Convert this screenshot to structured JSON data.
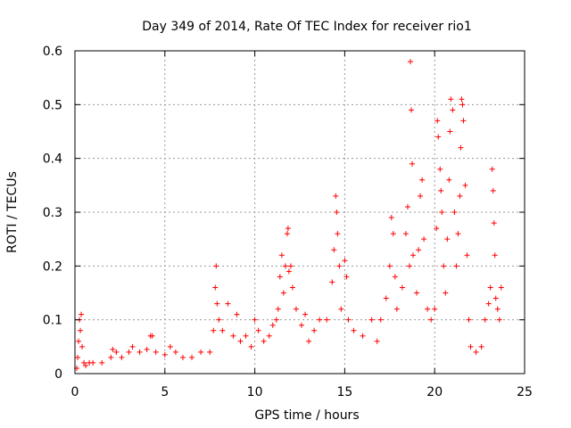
{
  "chart_data": {
    "type": "scatter",
    "title": "Day 349 of 2014, Rate Of TEC Index for receiver rio1",
    "xlabel": "GPS time / hours",
    "ylabel": "ROTI / TECUs",
    "xlim": [
      0,
      25
    ],
    "ylim": [
      0,
      0.6
    ],
    "grid": true,
    "marker": "+",
    "color": "#ff0000",
    "x_ticks": [
      0,
      5,
      10,
      15,
      20,
      25
    ],
    "x_tick_labels": [
      "0",
      "5",
      "10",
      "15",
      "20",
      "25"
    ],
    "y_ticks": [
      0,
      0.1,
      0.2,
      0.3,
      0.4,
      0.5,
      0.6
    ],
    "y_tick_labels": [
      "0",
      "0.1",
      "0.2",
      "0.3",
      "0.4",
      "0.5",
      "0.6"
    ],
    "series": [
      {
        "name": "ROTI",
        "points": [
          [
            0.1,
            0.01
          ],
          [
            0.15,
            0.03
          ],
          [
            0.2,
            0.06
          ],
          [
            0.25,
            0.1
          ],
          [
            0.3,
            0.08
          ],
          [
            0.35,
            0.11
          ],
          [
            0.4,
            0.05
          ],
          [
            0.5,
            0.02
          ],
          [
            0.6,
            0.015
          ],
          [
            0.8,
            0.02
          ],
          [
            1.0,
            0.02
          ],
          [
            1.5,
            0.02
          ],
          [
            2.0,
            0.03
          ],
          [
            2.1,
            0.045
          ],
          [
            2.3,
            0.04
          ],
          [
            2.6,
            0.03
          ],
          [
            3.0,
            0.04
          ],
          [
            3.2,
            0.05
          ],
          [
            3.6,
            0.04
          ],
          [
            4.0,
            0.045
          ],
          [
            4.2,
            0.07
          ],
          [
            4.3,
            0.07
          ],
          [
            4.5,
            0.04
          ],
          [
            5.0,
            0.035
          ],
          [
            5.3,
            0.05
          ],
          [
            5.6,
            0.04
          ],
          [
            6.0,
            0.03
          ],
          [
            6.5,
            0.03
          ],
          [
            7.0,
            0.04
          ],
          [
            7.5,
            0.04
          ],
          [
            7.7,
            0.08
          ],
          [
            7.8,
            0.16
          ],
          [
            7.85,
            0.2
          ],
          [
            7.9,
            0.13
          ],
          [
            8.0,
            0.1
          ],
          [
            8.2,
            0.08
          ],
          [
            8.5,
            0.13
          ],
          [
            8.8,
            0.07
          ],
          [
            9.0,
            0.11
          ],
          [
            9.2,
            0.06
          ],
          [
            9.5,
            0.07
          ],
          [
            9.8,
            0.05
          ],
          [
            10.0,
            0.1
          ],
          [
            10.2,
            0.08
          ],
          [
            10.5,
            0.06
          ],
          [
            10.8,
            0.07
          ],
          [
            11.0,
            0.09
          ],
          [
            11.2,
            0.1
          ],
          [
            11.3,
            0.12
          ],
          [
            11.4,
            0.18
          ],
          [
            11.5,
            0.22
          ],
          [
            11.6,
            0.15
          ],
          [
            11.7,
            0.2
          ],
          [
            11.8,
            0.26
          ],
          [
            11.85,
            0.27
          ],
          [
            11.9,
            0.19
          ],
          [
            12.0,
            0.2
          ],
          [
            12.1,
            0.16
          ],
          [
            12.3,
            0.12
          ],
          [
            12.6,
            0.09
          ],
          [
            12.8,
            0.11
          ],
          [
            13.0,
            0.06
          ],
          [
            13.3,
            0.08
          ],
          [
            13.6,
            0.1
          ],
          [
            14.0,
            0.1
          ],
          [
            14.3,
            0.17
          ],
          [
            14.4,
            0.23
          ],
          [
            14.5,
            0.33
          ],
          [
            14.55,
            0.3
          ],
          [
            14.6,
            0.26
          ],
          [
            14.7,
            0.2
          ],
          [
            14.8,
            0.12
          ],
          [
            15.0,
            0.21
          ],
          [
            15.1,
            0.18
          ],
          [
            15.2,
            0.1
          ],
          [
            15.5,
            0.08
          ],
          [
            16.0,
            0.07
          ],
          [
            16.5,
            0.1
          ],
          [
            16.8,
            0.06
          ],
          [
            17.0,
            0.1
          ],
          [
            17.3,
            0.14
          ],
          [
            17.5,
            0.2
          ],
          [
            17.6,
            0.29
          ],
          [
            17.7,
            0.26
          ],
          [
            17.8,
            0.18
          ],
          [
            17.9,
            0.12
          ],
          [
            18.2,
            0.16
          ],
          [
            18.4,
            0.26
          ],
          [
            18.5,
            0.31
          ],
          [
            18.6,
            0.2
          ],
          [
            18.65,
            0.58
          ],
          [
            18.7,
            0.49
          ],
          [
            18.75,
            0.39
          ],
          [
            18.8,
            0.22
          ],
          [
            19.0,
            0.15
          ],
          [
            19.1,
            0.23
          ],
          [
            19.2,
            0.33
          ],
          [
            19.3,
            0.36
          ],
          [
            19.4,
            0.25
          ],
          [
            19.6,
            0.12
          ],
          [
            19.8,
            0.1
          ],
          [
            20.0,
            0.12
          ],
          [
            20.1,
            0.27
          ],
          [
            20.15,
            0.47
          ],
          [
            20.2,
            0.44
          ],
          [
            20.3,
            0.38
          ],
          [
            20.35,
            0.34
          ],
          [
            20.4,
            0.3
          ],
          [
            20.5,
            0.2
          ],
          [
            20.6,
            0.15
          ],
          [
            20.7,
            0.25
          ],
          [
            20.8,
            0.36
          ],
          [
            20.85,
            0.45
          ],
          [
            20.9,
            0.51
          ],
          [
            21.0,
            0.49
          ],
          [
            21.1,
            0.3
          ],
          [
            21.2,
            0.2
          ],
          [
            21.3,
            0.26
          ],
          [
            21.4,
            0.33
          ],
          [
            21.45,
            0.42
          ],
          [
            21.5,
            0.51
          ],
          [
            21.55,
            0.5
          ],
          [
            21.6,
            0.47
          ],
          [
            21.7,
            0.35
          ],
          [
            21.8,
            0.22
          ],
          [
            21.9,
            0.1
          ],
          [
            22.0,
            0.05
          ],
          [
            22.3,
            0.04
          ],
          [
            22.6,
            0.05
          ],
          [
            22.8,
            0.1
          ],
          [
            23.0,
            0.13
          ],
          [
            23.1,
            0.16
          ],
          [
            23.2,
            0.38
          ],
          [
            23.25,
            0.34
          ],
          [
            23.3,
            0.28
          ],
          [
            23.35,
            0.22
          ],
          [
            23.4,
            0.14
          ],
          [
            23.5,
            0.12
          ],
          [
            23.6,
            0.1
          ],
          [
            23.7,
            0.16
          ]
        ]
      }
    ]
  }
}
